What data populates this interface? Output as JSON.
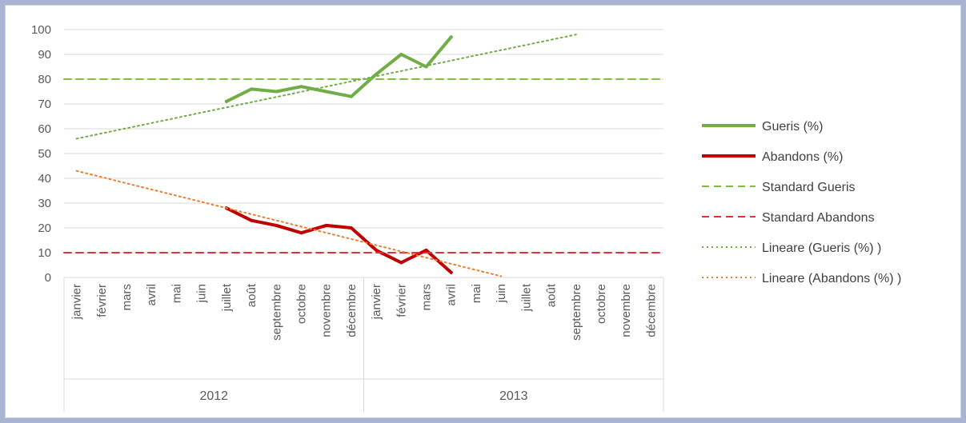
{
  "chart_data": {
    "type": "line",
    "ylim": [
      0,
      100
    ],
    "yticks": [
      0,
      10,
      20,
      30,
      40,
      50,
      60,
      70,
      80,
      90,
      100
    ],
    "grid": true,
    "legend_position": "right",
    "months": [
      "janvier",
      "février",
      "mars",
      "avril",
      "mai",
      "juin",
      "juillet",
      "août",
      "septembre",
      "octobre",
      "novembre",
      "décembre"
    ],
    "groups": [
      {
        "label": "2012",
        "months": 12
      },
      {
        "label": "2013",
        "months": 12
      }
    ],
    "series": [
      {
        "name": "Gueris (%)",
        "style": "solid",
        "color": "#70ad47",
        "values": [
          null,
          null,
          null,
          null,
          null,
          null,
          71,
          76,
          75,
          77,
          75,
          73,
          82,
          90,
          85,
          97,
          null,
          null,
          null,
          null,
          null,
          null,
          null,
          null
        ]
      },
      {
        "name": "Abandons (%)",
        "style": "solid",
        "color": "#c00000",
        "values": [
          null,
          null,
          null,
          null,
          null,
          null,
          28,
          23,
          21,
          18,
          21,
          20,
          11,
          6,
          11,
          2,
          null,
          null,
          null,
          null,
          null,
          null,
          null,
          null
        ]
      },
      {
        "name": "Standard Gueris",
        "style": "dashed",
        "color": "#7ac142",
        "constant": 80
      },
      {
        "name": "Standard Abandons",
        "style": "dashed",
        "color": "#e0303a",
        "constant": 10
      },
      {
        "name": "Lineare (Gueris (%) )",
        "style": "dotted",
        "color": "#70ad47",
        "trend_start": 56,
        "trend_slope": 2.1
      },
      {
        "name": "Lineare (Abandons (%) )",
        "style": "dotted",
        "color": "#ed7d31",
        "trend_start": 43,
        "trend_slope": -2.5
      }
    ]
  }
}
